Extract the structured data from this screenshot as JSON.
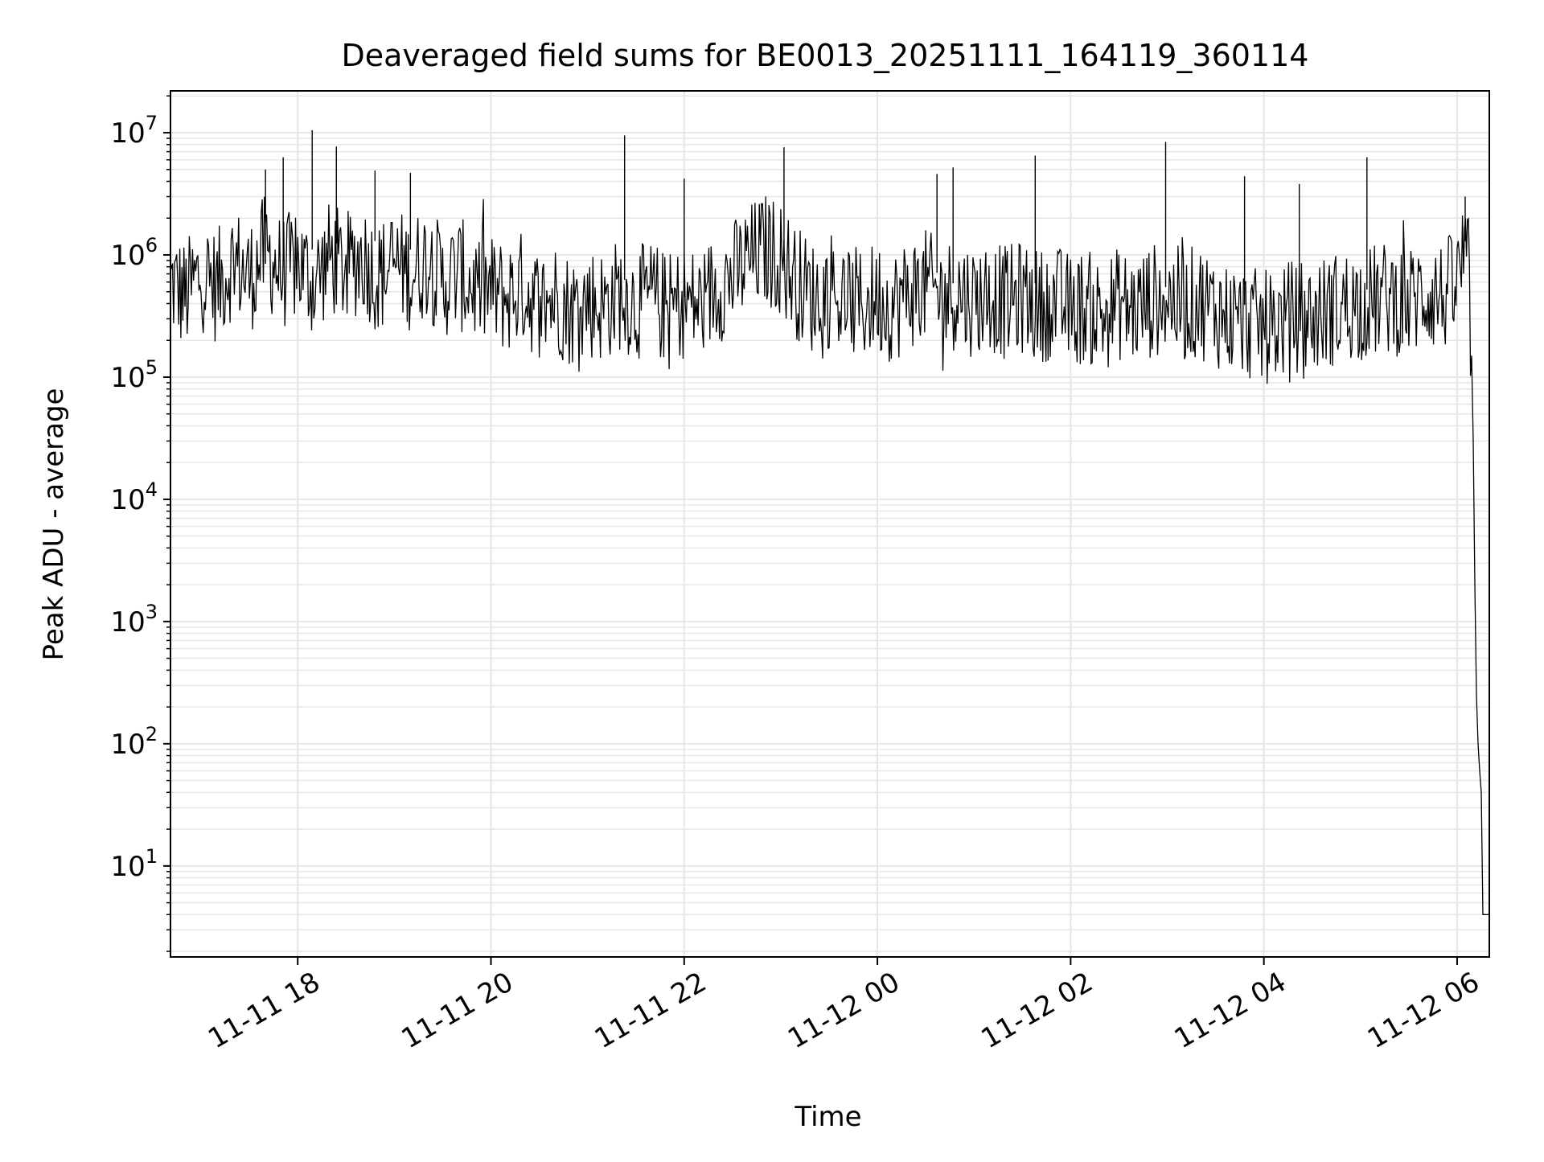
{
  "chart_data": {
    "type": "line",
    "title": "Deaveraged field sums for BE0013_20251111_164119_360114",
    "xlabel": "Time",
    "ylabel": "Peak ADU - average",
    "yscale": "log",
    "ylim": [
      1.8,
      22000000
    ],
    "xlim": [
      "2025-11-11 16:41",
      "2025-11-12 06:20"
    ],
    "x_ticks": [
      "2025-11-11 18:00",
      "2025-11-11 20:00",
      "2025-11-11 22:00",
      "2025-11-12 00:00",
      "2025-11-12 02:00",
      "2025-11-12 04:00",
      "2025-11-12 06:00"
    ],
    "x_tick_labels": [
      "11-11 18",
      "11-11 20",
      "11-11 22",
      "11-12 00",
      "11-12 02",
      "11-12 04",
      "11-12 06"
    ],
    "y_tick_labels": [
      {
        "base": "10",
        "exp": "1",
        "value": 10
      },
      {
        "base": "10",
        "exp": "2",
        "value": 100
      },
      {
        "base": "10",
        "exp": "3",
        "value": 1000
      },
      {
        "base": "10",
        "exp": "4",
        "value": 10000
      },
      {
        "base": "10",
        "exp": "5",
        "value": 100000
      },
      {
        "base": "10",
        "exp": "6",
        "value": 1000000
      },
      {
        "base": "10",
        "exp": "7",
        "value": 10000000
      }
    ],
    "grid": true,
    "line_color": "#000000",
    "grid_color": "#e6e6e6",
    "series": [
      {
        "points": [
          [
            "2025-11-11 16:41",
            600000
          ],
          [
            "2025-11-11 16:50",
            450000
          ],
          [
            "2025-11-11 17:00",
            700000
          ],
          [
            "2025-11-11 17:10",
            550000
          ],
          [
            "2025-11-11 17:20",
            900000
          ],
          [
            "2025-11-11 17:30",
            650000
          ],
          [
            "2025-11-11 17:40",
            1100000
          ],
          [
            "2025-11-11 17:50",
            700000
          ],
          [
            "2025-11-11 18:00",
            850000
          ],
          [
            "2025-11-11 18:10",
            600000
          ],
          [
            "2025-11-11 18:20",
            950000
          ],
          [
            "2025-11-11 18:30",
            750000
          ],
          [
            "2025-11-11 18:40",
            1000000
          ],
          [
            "2025-11-11 18:50",
            650000
          ],
          [
            "2025-11-11 19:00",
            850000
          ],
          [
            "2025-11-11 19:10",
            700000
          ],
          [
            "2025-11-11 19:20",
            900000
          ],
          [
            "2025-11-11 19:30",
            600000
          ],
          [
            "2025-11-11 19:40",
            700000
          ],
          [
            "2025-11-11 19:50",
            550000
          ],
          [
            "2025-11-11 20:00",
            500000
          ],
          [
            "2025-11-11 20:10",
            450000
          ],
          [
            "2025-11-11 20:20",
            550000
          ],
          [
            "2025-11-11 20:30",
            380000
          ],
          [
            "2025-11-11 20:40",
            450000
          ],
          [
            "2025-11-11 20:50",
            350000
          ],
          [
            "2025-11-11 21:00",
            420000
          ],
          [
            "2025-11-11 21:10",
            380000
          ],
          [
            "2025-11-11 21:20",
            480000
          ],
          [
            "2025-11-11 21:30",
            400000
          ],
          [
            "2025-11-11 21:40",
            450000
          ],
          [
            "2025-11-11 21:50",
            350000
          ],
          [
            "2025-11-11 22:00",
            420000
          ],
          [
            "2025-11-11 22:10",
            380000
          ],
          [
            "2025-11-11 22:20",
            550000
          ],
          [
            "2025-11-11 22:30",
            650000
          ],
          [
            "2025-11-11 22:40",
            900000
          ],
          [
            "2025-11-11 22:50",
            1100000
          ],
          [
            "2025-11-11 23:00",
            950000
          ],
          [
            "2025-11-11 23:10",
            600000
          ],
          [
            "2025-11-11 23:20",
            450000
          ],
          [
            "2025-11-11 23:30",
            500000
          ],
          [
            "2025-11-11 23:40",
            420000
          ],
          [
            "2025-11-11 23:50",
            380000
          ],
          [
            "2025-11-12 00:00",
            450000
          ],
          [
            "2025-11-12 00:10",
            380000
          ],
          [
            "2025-11-12 00:20",
            500000
          ],
          [
            "2025-11-12 00:30",
            550000
          ],
          [
            "2025-11-12 00:40",
            450000
          ],
          [
            "2025-11-12 00:50",
            500000
          ],
          [
            "2025-11-12 01:00",
            420000
          ],
          [
            "2025-11-12 01:10",
            480000
          ],
          [
            "2025-11-12 01:20",
            400000
          ],
          [
            "2025-11-12 01:30",
            450000
          ],
          [
            "2025-11-12 01:40",
            380000
          ],
          [
            "2025-11-12 01:50",
            420000
          ],
          [
            "2025-11-12 02:00",
            350000
          ],
          [
            "2025-11-12 02:10",
            380000
          ],
          [
            "2025-11-12 02:20",
            320000
          ],
          [
            "2025-11-12 02:30",
            400000
          ],
          [
            "2025-11-12 02:40",
            350000
          ],
          [
            "2025-11-12 02:50",
            420000
          ],
          [
            "2025-11-12 03:00",
            450000
          ],
          [
            "2025-11-12 03:10",
            380000
          ],
          [
            "2025-11-12 03:20",
            420000
          ],
          [
            "2025-11-12 03:30",
            350000
          ],
          [
            "2025-11-12 03:40",
            300000
          ],
          [
            "2025-11-12 03:50",
            280000
          ],
          [
            "2025-11-12 04:00",
            250000
          ],
          [
            "2025-11-12 04:10",
            280000
          ],
          [
            "2025-11-12 04:20",
            320000
          ],
          [
            "2025-11-12 04:30",
            300000
          ],
          [
            "2025-11-12 04:40",
            350000
          ],
          [
            "2025-11-12 04:50",
            380000
          ],
          [
            "2025-11-12 05:00",
            400000
          ],
          [
            "2025-11-12 05:10",
            420000
          ],
          [
            "2025-11-12 05:20",
            450000
          ],
          [
            "2025-11-12 05:30",
            400000
          ],
          [
            "2025-11-12 05:40",
            500000
          ],
          [
            "2025-11-12 05:50",
            450000
          ],
          [
            "2025-11-12 06:00",
            550000
          ],
          [
            "2025-11-12 06:04",
            1000000
          ],
          [
            "2025-11-12 06:07",
            700000
          ],
          [
            "2025-11-12 06:09",
            150000
          ],
          [
            "2025-11-12 06:10",
            30000
          ],
          [
            "2025-11-12 06:11",
            2000
          ],
          [
            "2025-11-12 06:12",
            250
          ],
          [
            "2025-11-12 06:13",
            100
          ],
          [
            "2025-11-12 06:14",
            60
          ],
          [
            "2025-11-12 06:15",
            40
          ],
          [
            "2025-11-12 06:16",
            4
          ],
          [
            "2025-11-12 06:20",
            4
          ]
        ],
        "spikes": [
          [
            "2025-11-11 17:51",
            6300000
          ],
          [
            "2025-11-11 18:09",
            10500000
          ],
          [
            "2025-11-11 18:24",
            7700000
          ],
          [
            "2025-11-11 17:40",
            5000000
          ],
          [
            "2025-11-11 18:48",
            4900000
          ],
          [
            "2025-11-11 19:10",
            4700000
          ],
          [
            "2025-11-11 21:23",
            9500000
          ],
          [
            "2025-11-11 22:00",
            4200000
          ],
          [
            "2025-11-11 23:02",
            7600000
          ],
          [
            "2025-11-12 00:37",
            4600000
          ],
          [
            "2025-11-12 00:47",
            5200000
          ],
          [
            "2025-11-12 01:38",
            6500000
          ],
          [
            "2025-11-12 02:59",
            8400000
          ],
          [
            "2025-11-12 03:48",
            4400000
          ],
          [
            "2025-11-12 04:22",
            3800000
          ],
          [
            "2025-11-12 05:04",
            6300000
          ],
          [
            "2025-11-12 06:05",
            3000000
          ]
        ]
      }
    ]
  }
}
